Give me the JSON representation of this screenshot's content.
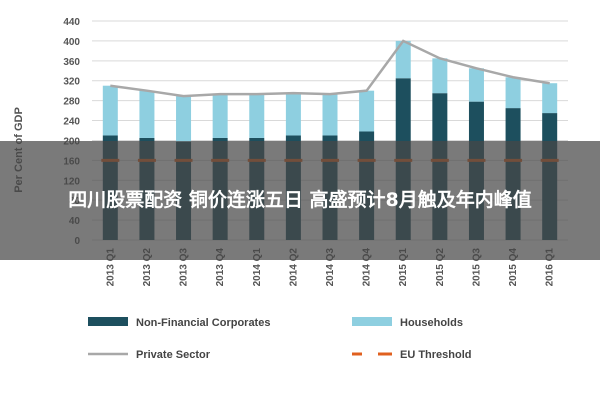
{
  "banner": {
    "headline": "四川股票配资 铜价连涨五日 高盛预计8月触及年内峰值"
  },
  "chart_data": {
    "type": "bar",
    "stacked": true,
    "categories": [
      "2013 Q1",
      "2013 Q2",
      "2013 Q3",
      "2013 Q4",
      "2014 Q1",
      "2014 Q2",
      "2014 Q3",
      "2014 Q4",
      "2015 Q1",
      "2015 Q2",
      "2015 Q3",
      "2015 Q4",
      "2016 Q1"
    ],
    "ylabel": "Per Cent of GDP",
    "ylim": [
      0,
      440
    ],
    "yticks": [
      0,
      40,
      80,
      120,
      160,
      200,
      240,
      280,
      320,
      360,
      400,
      440
    ],
    "grid": true,
    "legend_position": "bottom",
    "series": [
      {
        "name": "Non-Financial Corporates",
        "kind": "bar",
        "color": "#1d4f5e",
        "values": [
          210,
          205,
          197,
          205,
          205,
          210,
          210,
          218,
          325,
          295,
          278,
          265,
          255
        ]
      },
      {
        "name": "Households",
        "kind": "bar",
        "color": "#8ecfe0",
        "values": [
          100,
          95,
          92,
          88,
          88,
          85,
          83,
          82,
          75,
          70,
          67,
          62,
          60
        ]
      },
      {
        "name": "Private Sector",
        "kind": "line",
        "color": "#a8a8a8",
        "values": [
          310,
          300,
          289,
          293,
          293,
          295,
          293,
          300,
          400,
          365,
          345,
          327,
          315
        ]
      },
      {
        "name": "EU Threshold",
        "kind": "dashed",
        "color": "#e0601f",
        "values": [
          160,
          160,
          160,
          160,
          160,
          160,
          160,
          160,
          160,
          160,
          160,
          160,
          160
        ]
      }
    ]
  }
}
